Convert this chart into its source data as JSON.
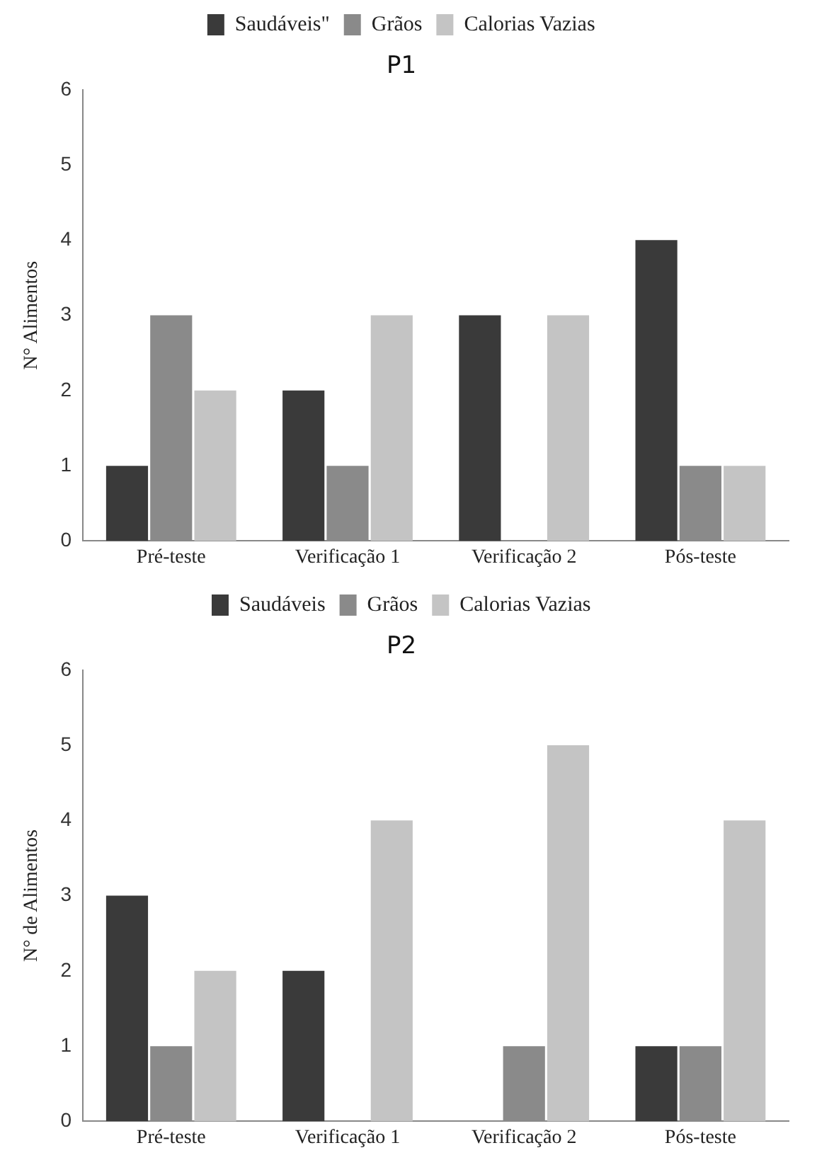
{
  "chart_data": [
    {
      "type": "bar",
      "title": "P1",
      "ylabel": "N° Alimentos",
      "categories": [
        "Pré-teste",
        "Verificação 1",
        "Verificação 2",
        "Pós-teste"
      ],
      "series": [
        {
          "name": "Saudáveis\"",
          "color": "#3a3a3a",
          "values": [
            1,
            2,
            3,
            4
          ]
        },
        {
          "name": "Grãos",
          "color": "#8a8a8a",
          "values": [
            3,
            1,
            0,
            1
          ]
        },
        {
          "name": "Calorias Vazias",
          "color": "#c4c4c4",
          "values": [
            2,
            3,
            3,
            1
          ]
        }
      ],
      "ylim": [
        0,
        6
      ],
      "yticks": [
        0,
        1,
        2,
        3,
        4,
        5,
        6
      ],
      "grid": false,
      "legend": "top"
    },
    {
      "type": "bar",
      "title": "P2",
      "ylabel": "N° de Alimentos",
      "categories": [
        "Pré-teste",
        "Verificação 1",
        "Verificação 2",
        "Pós-teste"
      ],
      "series": [
        {
          "name": "Saudáveis",
          "color": "#3a3a3a",
          "values": [
            3,
            2,
            0,
            1
          ]
        },
        {
          "name": "Grãos",
          "color": "#8a8a8a",
          "values": [
            1,
            0,
            1,
            1
          ]
        },
        {
          "name": "Calorias Vazias",
          "color": "#c4c4c4",
          "values": [
            2,
            4,
            5,
            4
          ]
        }
      ],
      "ylim": [
        0,
        6
      ],
      "yticks": [
        0,
        1,
        2,
        3,
        4,
        5,
        6
      ],
      "grid": false,
      "legend": "top"
    }
  ]
}
